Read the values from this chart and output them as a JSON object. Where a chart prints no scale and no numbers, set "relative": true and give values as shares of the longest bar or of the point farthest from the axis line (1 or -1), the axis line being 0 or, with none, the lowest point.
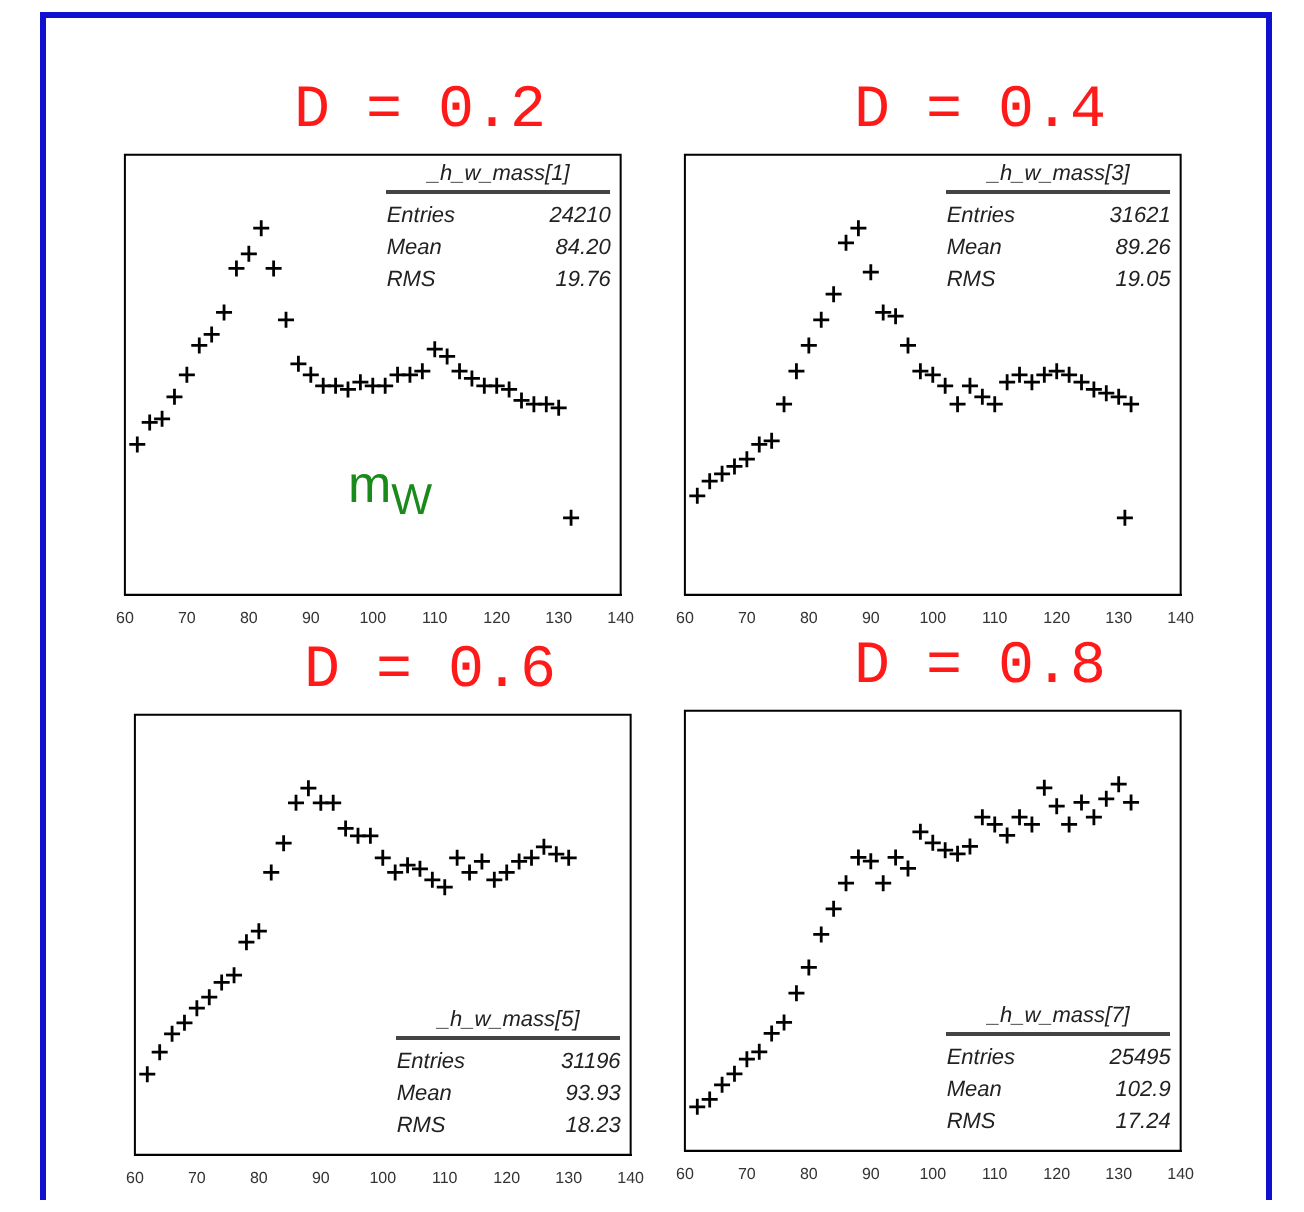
{
  "chart_data": [
    {
      "type": "scatter",
      "title": "D = 0.2",
      "relative": true,
      "marker": "cross",
      "grid": false,
      "xlim": [
        60,
        140
      ],
      "xticks": [
        60,
        70,
        80,
        90,
        100,
        110,
        120,
        130,
        140
      ],
      "annotations": [
        "_h_w_mass[1]",
        "Entries 24210",
        "Mean 84.20",
        "RMS 19.76",
        "m$_{W}$"
      ],
      "series": [
        {
          "color": "#000000",
          "x": [
            62,
            64,
            66,
            68,
            70,
            72,
            74,
            76,
            78,
            80,
            82,
            84,
            86,
            88,
            90,
            92,
            94,
            96,
            98,
            100,
            102,
            104,
            106,
            108,
            110,
            112,
            114,
            116,
            118,
            120,
            122,
            124,
            126,
            128,
            130,
            132
          ],
          "values": [
            0.41,
            0.47,
            0.48,
            0.54,
            0.6,
            0.68,
            0.71,
            0.77,
            0.89,
            0.93,
            1,
            0.89,
            0.75,
            0.63,
            0.6,
            0.57,
            0.57,
            0.56,
            0.58,
            0.57,
            0.57,
            0.6,
            0.6,
            0.61,
            0.67,
            0.65,
            0.61,
            0.59,
            0.57,
            0.57,
            0.56,
            0.53,
            0.52,
            0.52,
            0.51,
            0.21
          ]
        }
      ]
    },
    {
      "type": "scatter",
      "title": "D = 0.4",
      "relative": true,
      "marker": "cross",
      "grid": false,
      "xlim": [
        60,
        140
      ],
      "xticks": [
        60,
        70,
        80,
        90,
        100,
        110,
        120,
        130,
        140
      ],
      "annotations": [
        "_h_w_mass[3]",
        "Entries 31621",
        "Mean 89.26",
        "RMS 19.05"
      ],
      "series": [
        {
          "color": "#000000",
          "x": [
            62,
            64,
            66,
            68,
            70,
            72,
            74,
            76,
            78,
            80,
            82,
            84,
            86,
            88,
            90,
            92,
            94,
            96,
            98,
            100,
            102,
            104,
            106,
            108,
            110,
            112,
            114,
            116,
            118,
            120,
            122,
            124,
            126,
            128,
            130,
            132,
            131
          ],
          "values": [
            0.27,
            0.31,
            0.33,
            0.35,
            0.37,
            0.41,
            0.42,
            0.52,
            0.61,
            0.68,
            0.75,
            0.82,
            0.96,
            1,
            0.88,
            0.77,
            0.76,
            0.68,
            0.61,
            0.6,
            0.57,
            0.52,
            0.57,
            0.54,
            0.52,
            0.58,
            0.6,
            0.58,
            0.6,
            0.61,
            0.6,
            0.58,
            0.56,
            0.55,
            0.54,
            0.52,
            0.21
          ]
        }
      ]
    },
    {
      "type": "scatter",
      "title": "D = 0.6",
      "relative": true,
      "marker": "cross",
      "grid": false,
      "xlim": [
        60,
        140
      ],
      "xticks": [
        60,
        70,
        80,
        90,
        100,
        110,
        120,
        130,
        140
      ],
      "annotations": [
        "_h_w_mass[5]",
        "Entries 31196",
        "Mean 93.93",
        "RMS 18.23"
      ],
      "series": [
        {
          "color": "#000000",
          "x": [
            62,
            64,
            66,
            68,
            70,
            72,
            74,
            76,
            78,
            80,
            82,
            84,
            86,
            88,
            90,
            92,
            94,
            96,
            98,
            100,
            102,
            104,
            106,
            108,
            110,
            112,
            114,
            116,
            118,
            120,
            122,
            124,
            126,
            128,
            130
          ],
          "values": [
            0.22,
            0.28,
            0.33,
            0.36,
            0.4,
            0.43,
            0.47,
            0.49,
            0.58,
            0.61,
            0.77,
            0.85,
            0.96,
            1,
            0.96,
            0.96,
            0.89,
            0.87,
            0.87,
            0.81,
            0.77,
            0.79,
            0.78,
            0.75,
            0.73,
            0.81,
            0.77,
            0.8,
            0.75,
            0.77,
            0.8,
            0.81,
            0.84,
            0.82,
            0.81
          ]
        }
      ]
    },
    {
      "type": "scatter",
      "title": "D = 0.8",
      "relative": true,
      "marker": "cross",
      "grid": false,
      "xlim": [
        60,
        140
      ],
      "xticks": [
        60,
        70,
        80,
        90,
        100,
        110,
        120,
        130,
        140
      ],
      "annotations": [
        "_h_w_mass[7]",
        "Entries 25495",
        "Mean 102.9",
        "RMS 17.24"
      ],
      "series": [
        {
          "color": "#000000",
          "x": [
            62,
            64,
            66,
            68,
            70,
            72,
            74,
            76,
            78,
            80,
            82,
            84,
            86,
            88,
            90,
            92,
            94,
            96,
            98,
            100,
            102,
            104,
            106,
            108,
            110,
            112,
            114,
            116,
            118,
            120,
            122,
            124,
            126,
            128,
            130,
            132
          ],
          "values": [
            0.12,
            0.14,
            0.18,
            0.21,
            0.25,
            0.27,
            0.32,
            0.35,
            0.43,
            0.5,
            0.59,
            0.66,
            0.73,
            0.8,
            0.79,
            0.73,
            0.8,
            0.77,
            0.87,
            0.84,
            0.82,
            0.81,
            0.83,
            0.91,
            0.89,
            0.86,
            0.91,
            0.89,
            0.99,
            0.94,
            0.89,
            0.95,
            0.91,
            0.96,
            1,
            0.95
          ]
        }
      ]
    }
  ]
}
